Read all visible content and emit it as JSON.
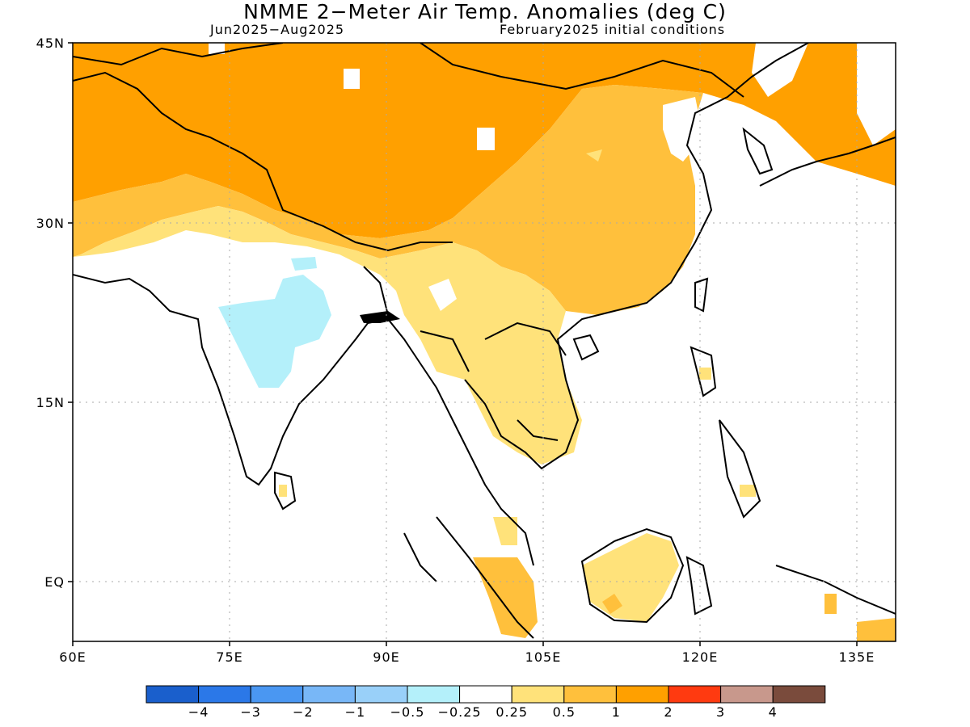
{
  "title": "NMME 2−Meter Air Temp. Anomalies (deg C)",
  "subtitle_left": "Jun2025−Aug2025",
  "subtitle_right": "February2025 initial conditions",
  "lat_labels": [
    "45N",
    "30N",
    "15N",
    "EQ"
  ],
  "lon_labels": [
    "60E",
    "75E",
    "90E",
    "105E",
    "120E",
    "135E"
  ],
  "colorbar": {
    "colors": [
      "#1a5fcc",
      "#2b78e8",
      "#4a97f2",
      "#78b7f7",
      "#99d0f9",
      "#b4f0fa",
      "#ffffff",
      "#ffe27a",
      "#ffc03c",
      "#ffa000",
      "#ff3a10",
      "#c8988c",
      "#7a4b3c"
    ],
    "labels": [
      "−4",
      "−3",
      "−2",
      "−1",
      "−0.5",
      "−0.25",
      "0.25",
      "0.5",
      "1",
      "2",
      "3",
      "4"
    ]
  },
  "legend_colors": {
    "strong_warm": "#ffa000",
    "moderate_warm": "#ffc03c",
    "slight_warm": "#ffe27a",
    "slight_cool": "#b4f0fa",
    "land_outline": "#000000",
    "grid": "#aaaaaa"
  }
}
